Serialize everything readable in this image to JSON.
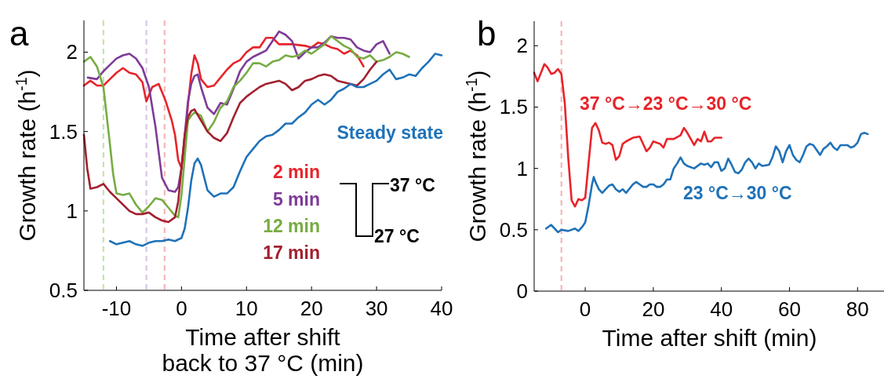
{
  "chart_data": [
    {
      "type": "line",
      "title": "a",
      "xlabel": "Time after shift\nback to 37 °C (min)",
      "ylabel": "Growth rate (h$^{-1}$)",
      "xlim": [
        -15,
        40
      ],
      "ylim": [
        0.5,
        2.2
      ],
      "xticks": [
        -10,
        0,
        10,
        20,
        30,
        40
      ],
      "yticks": [
        0.5,
        1,
        1.5,
        2
      ],
      "annotations": [
        "37 °C",
        "27 °C"
      ],
      "ref_lines": [
        {
          "axis": "x",
          "value": -12,
          "color": "#c6e3b3",
          "line_style": "dashed"
        },
        {
          "axis": "x",
          "value": -5.4,
          "color": "#d9c6e3",
          "line_style": "dashed"
        },
        {
          "axis": "x",
          "value": -2.6,
          "color": "#f5b8b9",
          "line_style": "dashed"
        }
      ],
      "series": [
        {
          "name": "2 min",
          "color": "#e8242a",
          "x": [
            -15,
            -14,
            -13,
            -12,
            -11,
            -10,
            -9,
            -8,
            -7,
            -6,
            -5.4,
            -4.5,
            -3.5,
            -2.5,
            -1.5,
            -1,
            -0.5,
            0,
            0.5,
            1,
            1.5,
            2,
            2.5,
            3,
            4,
            5,
            6,
            7,
            8,
            9,
            10,
            11,
            12,
            13,
            14,
            15,
            17,
            19,
            20,
            21,
            22,
            23,
            24,
            25,
            26,
            27,
            28
          ],
          "values": [
            1.79,
            1.82,
            1.79,
            1.79,
            1.83,
            1.87,
            1.9,
            1.87,
            1.86,
            1.81,
            1.69,
            1.78,
            1.8,
            1.7,
            1.57,
            1.48,
            1.32,
            1.27,
            1.42,
            1.67,
            1.86,
            1.98,
            1.93,
            1.83,
            1.78,
            1.79,
            1.84,
            1.89,
            1.93,
            1.95,
            2,
            2.03,
            2.03,
            2.09,
            2.09,
            2.05,
            2.05,
            2.04,
            2.03,
            2.06,
            2.05,
            2.03,
            2.02,
            1.99,
            2.01,
            1.98,
            1.91
          ]
        },
        {
          "name": "5 min",
          "color": "#7e3b98",
          "x": [
            -14.4,
            -13,
            -12,
            -11,
            -10,
            -9,
            -8,
            -7,
            -6,
            -5,
            -4,
            -3,
            -2,
            -1,
            -0.5,
            0,
            0.5,
            1,
            1.5,
            2,
            2.5,
            3,
            4,
            5,
            6,
            7,
            8,
            9,
            10,
            11,
            12,
            13,
            14,
            15,
            16,
            17,
            18,
            19,
            20,
            21,
            22,
            23,
            24,
            25,
            26,
            27,
            28,
            29,
            30,
            31,
            32
          ],
          "values": [
            1.84,
            1.83,
            1.88,
            1.92,
            1.96,
            1.98,
            1.99,
            1.96,
            1.9,
            1.78,
            1.53,
            1.21,
            1.13,
            1.12,
            1.15,
            1.27,
            1.48,
            1.69,
            1.8,
            1.85,
            1.86,
            1.78,
            1.65,
            1.61,
            1.68,
            1.67,
            1.77,
            1.88,
            1.94,
            1.97,
            1.99,
            2.01,
            2.07,
            2.13,
            2.11,
            2.07,
            1.96,
            2,
            2.03,
            2.03,
            2.06,
            2.1,
            2.09,
            2.09,
            2.08,
            2.03,
            2.01,
            2,
            2.05,
            2.07,
            1.99
          ]
        },
        {
          "name": "12 min",
          "color": "#77ac43",
          "x": [
            -15,
            -14,
            -13,
            -12,
            -11,
            -10.5,
            -10,
            -9,
            -8,
            -7,
            -6,
            -5,
            -4,
            -3,
            -2,
            -1,
            -0.5,
            0,
            0.5,
            1,
            1.5,
            2,
            3,
            4,
            5,
            6,
            7,
            8,
            9,
            10,
            11,
            12,
            13,
            14,
            15,
            16,
            17,
            18,
            19,
            20,
            21,
            22,
            23,
            24,
            25,
            26,
            27,
            28,
            29,
            30,
            31,
            32,
            33,
            34,
            35
          ],
          "values": [
            1.94,
            1.97,
            1.91,
            1.78,
            1.42,
            1.23,
            1.11,
            1.1,
            1.11,
            1.04,
            0.99,
            1.03,
            1.08,
            1.07,
            1.02,
            0.97,
            0.96,
            1.1,
            1.34,
            1.57,
            1.6,
            1.62,
            1.6,
            1.5,
            1.56,
            1.65,
            1.69,
            1.78,
            1.82,
            1.87,
            1.93,
            1.93,
            1.91,
            1.94,
            1.95,
            1.98,
            1.97,
            1.98,
            2.01,
            1.99,
            2.02,
            2.05,
            2.1,
            2.07,
            2.04,
            2.02,
            1.97,
            1.96,
            1.98,
            1.94,
            1.95,
            1.97,
            2,
            1.99,
            1.97
          ]
        },
        {
          "name": "17 min",
          "color": "#a2202f",
          "x": [
            -15,
            -14.5,
            -14,
            -13,
            -12,
            -11,
            -10,
            -9,
            -8,
            -7,
            -6,
            -5,
            -4,
            -3,
            -2,
            -1,
            -0.5,
            0,
            0.5,
            1,
            1.5,
            2,
            3,
            4,
            5,
            6,
            7,
            8,
            9,
            10,
            11,
            12,
            13,
            14,
            15,
            16,
            17,
            18,
            19,
            20,
            21,
            22,
            23,
            24,
            25,
            26,
            27,
            28,
            29,
            30
          ],
          "values": [
            1.48,
            1.27,
            1.14,
            1.15,
            1.17,
            1.12,
            1.08,
            1.04,
            1,
            0.98,
            0.98,
            0.99,
            0.96,
            0.94,
            0.93,
            0.96,
            1.06,
            1.27,
            1.48,
            1.59,
            1.63,
            1.64,
            1.57,
            1.5,
            1.46,
            1.44,
            1.49,
            1.59,
            1.68,
            1.72,
            1.75,
            1.78,
            1.8,
            1.81,
            1.82,
            1.8,
            1.76,
            1.78,
            1.82,
            1.83,
            1.85,
            1.86,
            1.85,
            1.82,
            1.81,
            1.8,
            1.79,
            1.83,
            1.89,
            1.94
          ]
        },
        {
          "name": "Steady state",
          "color": "#1f72b8",
          "x": [
            -11,
            -10,
            -9,
            -8,
            -7,
            -6,
            -5,
            -4,
            -3,
            -2,
            -1,
            0,
            0.5,
            1,
            1.5,
            2,
            2.5,
            3,
            4,
            5,
            6,
            7,
            8,
            9,
            10,
            11,
            12,
            13,
            14,
            15,
            16,
            17,
            18,
            19,
            20,
            21,
            22,
            23,
            24,
            25,
            26,
            27,
            28,
            29,
            30,
            31,
            32,
            33,
            34,
            35,
            36,
            37,
            38,
            39,
            40
          ],
          "values": [
            0.81,
            0.79,
            0.8,
            0.81,
            0.79,
            0.78,
            0.8,
            0.81,
            0.81,
            0.82,
            0.81,
            0.83,
            0.89,
            1.02,
            1.19,
            1.3,
            1.33,
            1.29,
            1.13,
            1.09,
            1.11,
            1.11,
            1.15,
            1.25,
            1.34,
            1.39,
            1.44,
            1.47,
            1.48,
            1.51,
            1.55,
            1.55,
            1.59,
            1.62,
            1.67,
            1.7,
            1.67,
            1.7,
            1.75,
            1.77,
            1.8,
            1.78,
            1.78,
            1.8,
            1.82,
            1.86,
            1.89,
            1.83,
            1.84,
            1.86,
            1.85,
            1.9,
            1.94,
            1.99,
            1.98
          ]
        }
      ]
    },
    {
      "type": "line",
      "title": "b",
      "xlabel": "Time after shift (min)",
      "ylabel": "Growth rate (h$^{-1}$)",
      "xlim": [
        -15,
        88
      ],
      "ylim": [
        0,
        2.2
      ],
      "xticks": [
        0,
        20,
        40,
        60,
        80
      ],
      "yticks": [
        0,
        0.5,
        1,
        1.5,
        2
      ],
      "ref_lines": [
        {
          "axis": "x",
          "value": -7,
          "color": "#f5b8b9",
          "line_style": "dashed"
        }
      ],
      "series": [
        {
          "name": "37 °C→23 °C→30 °C",
          "color": "#e8242a",
          "x": [
            -15,
            -14,
            -13,
            -12,
            -11,
            -10,
            -9,
            -8,
            -7,
            -6,
            -5,
            -4,
            -3,
            -2,
            -1,
            0,
            1,
            2,
            3,
            4,
            5,
            6,
            7,
            8,
            9,
            10,
            11,
            12,
            14,
            16,
            18,
            19,
            20,
            22,
            23,
            24,
            26,
            28,
            29,
            30,
            32,
            33,
            34,
            35,
            36,
            37,
            38,
            40
          ],
          "values": [
            1.78,
            1.71,
            1.78,
            1.85,
            1.82,
            1.77,
            1.78,
            1.81,
            1.77,
            1.53,
            1.09,
            0.74,
            0.69,
            0.75,
            0.74,
            0.76,
            1.05,
            1.33,
            1.37,
            1.31,
            1.21,
            1.2,
            1.21,
            1.19,
            1.07,
            1.1,
            1.2,
            1.22,
            1.25,
            1.26,
            1.14,
            1.17,
            1.22,
            1.2,
            1.17,
            1.24,
            1.24,
            1.27,
            1.33,
            1.29,
            1.19,
            1.24,
            1.22,
            1.3,
            1.22,
            1.22,
            1.25,
            1.25
          ]
        },
        {
          "name": "23 °C→30 °C",
          "color": "#1f72b8",
          "x": [
            -11.5,
            -10,
            -9,
            -8,
            -7,
            -5,
            -3,
            -2,
            -1,
            0,
            1,
            2,
            2.5,
            3,
            4,
            5,
            6,
            7,
            8,
            9,
            10,
            11,
            12,
            14,
            15,
            16,
            17,
            18,
            19,
            20,
            21,
            22,
            23,
            24,
            25,
            26,
            27,
            28,
            29,
            30,
            32,
            34,
            35,
            36,
            37,
            38,
            39,
            40,
            41,
            42,
            43,
            44,
            45,
            46,
            47,
            48,
            49,
            50,
            51,
            52,
            54,
            55,
            56,
            57,
            58,
            59,
            60,
            61,
            62,
            63,
            64,
            65,
            66,
            67,
            68,
            69,
            70,
            71,
            72,
            73,
            74,
            75,
            76,
            77,
            78,
            79,
            80,
            81,
            82,
            83
          ],
          "values": [
            0.51,
            0.54,
            0.51,
            0.48,
            0.5,
            0.49,
            0.51,
            0.49,
            0.52,
            0.56,
            0.7,
            0.87,
            0.93,
            0.89,
            0.83,
            0.8,
            0.83,
            0.86,
            0.87,
            0.83,
            0.81,
            0.83,
            0.8,
            0.87,
            0.89,
            0.87,
            0.85,
            0.85,
            0.87,
            0.87,
            0.85,
            0.85,
            0.87,
            0.91,
            0.91,
            1,
            1.04,
            1.09,
            1.04,
            1.02,
            1,
            1.04,
            1.03,
            1.04,
            1.01,
            1.05,
            1.05,
            0.98,
            1,
            1.08,
            1.03,
            0.97,
            0.96,
            0.99,
            1.05,
            1.08,
            1.05,
            1,
            1.04,
            1.02,
            1.03,
            1.09,
            1.18,
            1.14,
            1.05,
            1.14,
            1.19,
            1.11,
            1.07,
            1.05,
            1.11,
            1.18,
            1.2,
            1.19,
            1.15,
            1.11,
            1.16,
            1.18,
            1.21,
            1.17,
            1.15,
            1.19,
            1.19,
            1.19,
            1.17,
            1.18,
            1.21,
            1.28,
            1.29,
            1.28
          ]
        }
      ]
    }
  ]
}
